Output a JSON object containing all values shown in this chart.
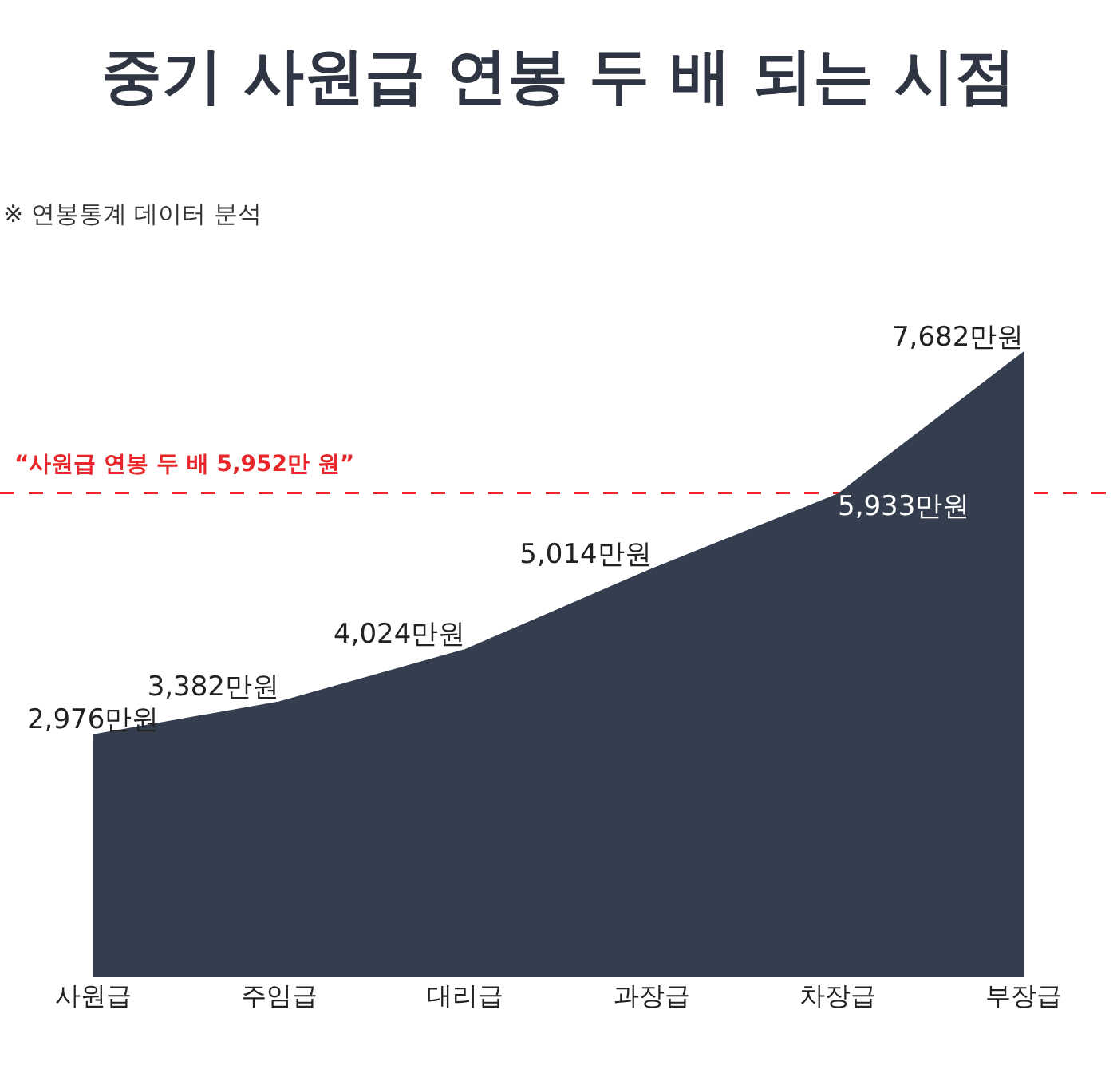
{
  "chart_data": {
    "type": "area",
    "title": "중기 사원급 연봉 두 배 되는 시점",
    "subtitle": "※ 연봉통계 데이터 분석",
    "categories": [
      "사원급",
      "주임급",
      "대리급",
      "과장급",
      "차장급",
      "부장급"
    ],
    "values": [
      2976,
      3382,
      4024,
      5014,
      5933,
      7682
    ],
    "value_labels": [
      "2,976만원",
      "3,382만원",
      "4,024만원",
      "5,014만원",
      "5,933만원",
      "7,682만원"
    ],
    "color": "#353e4f",
    "grid": false,
    "ref_lines": [
      {
        "axis": "y",
        "value": 5952,
        "label": "“사원급 연봉 두 배 5,952만 원”",
        "color": "#e8262a",
        "line_style": "dashed"
      }
    ]
  }
}
